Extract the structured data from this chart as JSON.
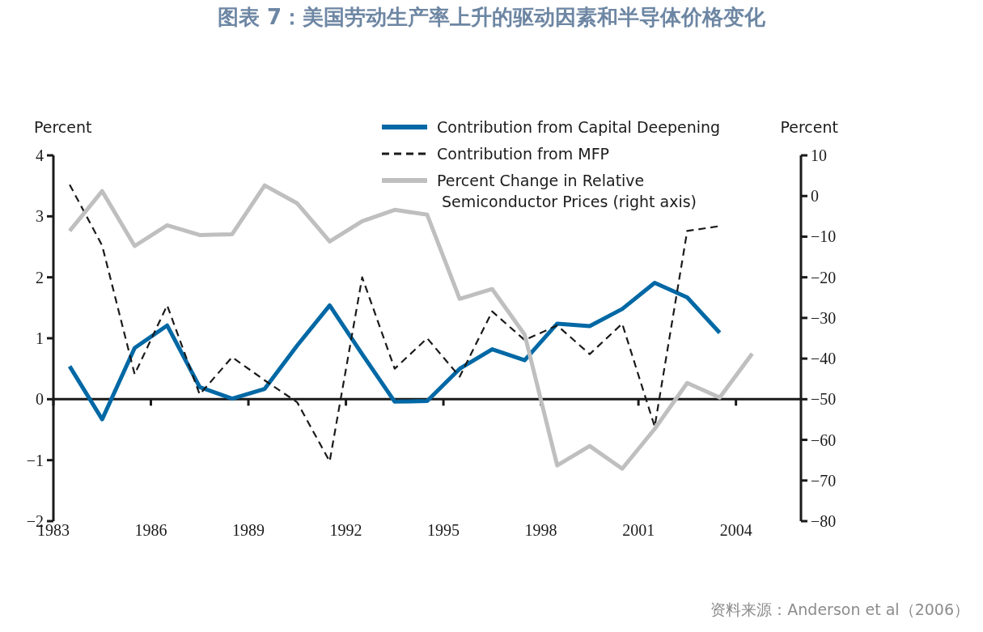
{
  "chart_data": {
    "type": "line",
    "title": "图表 7：美国劳动生产率上升的驱动因素和半导体价格变化",
    "annotations": [
      "资料来源：Anderson et al（2006）"
    ],
    "ylabel": "Percent",
    "y2label": "Percent",
    "x": [
      1983.5,
      1984.5,
      1985.5,
      1986.5,
      1987.5,
      1988.5,
      1989.5,
      1990.5,
      1991.5,
      1992.5,
      1993.5,
      1994.5,
      1995.5,
      1996.5,
      1997.5,
      1998.5,
      1999.5,
      2000.5,
      2001.5,
      2002.5,
      2003.5,
      2004.5
    ],
    "xlim": [
      1983,
      2006
    ],
    "xticks": [
      1983,
      1986,
      1989,
      1992,
      1995,
      1998,
      2001,
      2004
    ],
    "ylim": [
      -2,
      4
    ],
    "yticks": [
      -2,
      -1,
      0,
      1,
      2,
      3,
      4
    ],
    "y2lim": [
      -80,
      10
    ],
    "y2ticks": [
      -80,
      -70,
      -60,
      -50,
      -40,
      -30,
      -20,
      -10,
      0,
      10
    ],
    "legend": "top right",
    "marker": "none",
    "series": [
      {
        "name": "Contribution from Capital Deepening",
        "color": "#0068a5",
        "line_style": "solid",
        "values": [
          0.54,
          -0.33,
          0.84,
          1.21,
          0.2,
          0.01,
          0.17,
          0.88,
          1.54,
          0.74,
          -0.04,
          -0.03,
          0.5,
          0.82,
          0.64,
          1.24,
          1.2,
          1.48,
          1.91,
          1.67,
          1.09,
          null
        ]
      },
      {
        "name": "Contribution from MFP",
        "color": "#1a1a1a",
        "line_style": "dashed",
        "values": [
          3.52,
          2.52,
          0.41,
          1.54,
          0.08,
          0.69,
          0.31,
          -0.05,
          -1.02,
          2.0,
          0.5,
          1.0,
          0.37,
          1.44,
          0.97,
          1.21,
          0.74,
          1.24,
          -0.45,
          2.76,
          2.84,
          null
        ]
      },
      {
        "name": "Percent Change in Relative Semiconductor Prices (right axis)",
        "color": "#bfbfbf",
        "line_style": "solid",
        "axis": "y2",
        "values": [
          -8.6,
          1.2,
          -12.3,
          -7.2,
          -9.6,
          -9.4,
          2.6,
          -1.8,
          -11.2,
          -6.2,
          -3.4,
          -4.6,
          -25.3,
          -22.9,
          -34.1,
          -66.3,
          -61.5,
          -67.1,
          -57.3,
          -46.0,
          -49.6,
          -38.8
        ]
      }
    ]
  }
}
